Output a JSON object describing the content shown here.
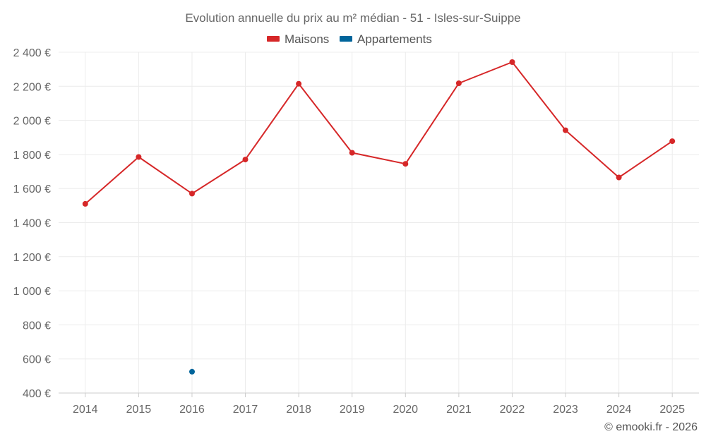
{
  "chart_data": {
    "type": "line",
    "title": "Evolution annuelle du prix au m² médian - 51 - Isles-sur-Suippe",
    "categories": [
      "2014",
      "2015",
      "2016",
      "2017",
      "2018",
      "2019",
      "2020",
      "2021",
      "2022",
      "2023",
      "2024",
      "2025"
    ],
    "series": [
      {
        "name": "Maisons",
        "color": "#d62728",
        "values": [
          1510,
          1785,
          1570,
          1770,
          2215,
          1810,
          1745,
          2218,
          2342,
          1942,
          1665,
          1878
        ]
      },
      {
        "name": "Appartements",
        "color": "#00659b",
        "values": [
          null,
          null,
          525,
          null,
          null,
          null,
          null,
          null,
          null,
          null,
          null,
          null
        ]
      }
    ],
    "ylim": [
      400,
      2400
    ],
    "yticks": [
      400,
      600,
      800,
      1000,
      1200,
      1400,
      1600,
      1800,
      2000,
      2200,
      2400
    ],
    "ytick_labels": [
      "400 €",
      "600 €",
      "800 €",
      "1 000 €",
      "1 200 €",
      "1 400 €",
      "1 600 €",
      "1 800 €",
      "2 000 €",
      "2 200 €",
      "2 400 €"
    ],
    "xlabel": "",
    "ylabel": "",
    "grid": true,
    "legend_position": "top-center"
  },
  "credit": "© emooki.fr - 2026"
}
